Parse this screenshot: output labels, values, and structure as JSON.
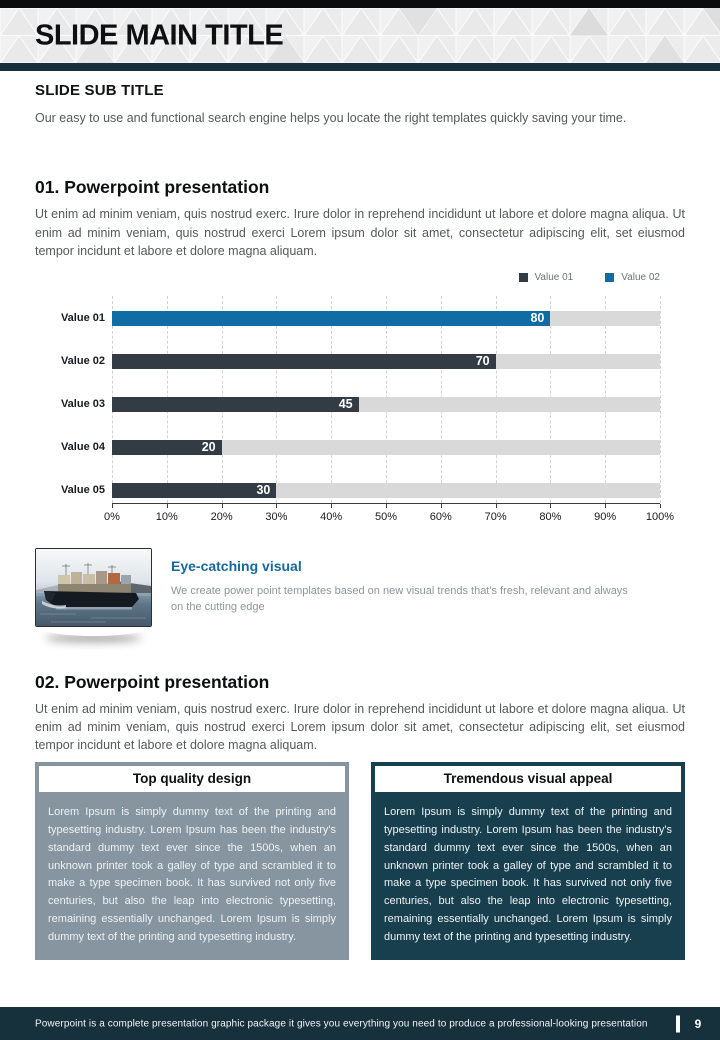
{
  "page": {
    "title": "SLIDE MAIN TITLE",
    "subtitle": "SLIDE SUB TITLE",
    "intro": "Our easy to use and functional search engine helps you locate the right templates quickly saving your time.",
    "footer_text": "Powerpoint is a complete presentation graphic package it gives you everything you need to produce a professional-looking presentation",
    "page_number": "9"
  },
  "sections": [
    {
      "heading": "01. Powerpoint presentation",
      "body": "Ut enim ad minim veniam, quis nostrud exerc. Irure dolor in reprehend incididunt ut labore et dolore magna aliqua. Ut enim ad minim veniam, quis nostrud exerci  Lorem ipsum dolor sit amet, consectetur adipiscing elit, set eiusmod tempor incidunt et labore et dolore magna aliquam."
    },
    {
      "heading": "02. Powerpoint presentation",
      "body": "Ut enim ad minim veniam, quis nostrud exerc. Irure dolor in reprehend incididunt ut labore et dolore magna aliqua. Ut enim ad minim veniam, quis nostrud exerci  Lorem ipsum dolor sit amet, consectetur adipiscing elit, set eiusmod tempor incidunt et labore et dolore magna aliquam."
    }
  ],
  "chart_data": {
    "type": "bar",
    "orientation": "horizontal",
    "categories": [
      "Value 01",
      "Value 02",
      "Value 03",
      "Value 04",
      "Value 05"
    ],
    "values": [
      80,
      70,
      45,
      20,
      30
    ],
    "series_colors": [
      "#0f6ca5",
      "#333b44",
      "#333b44",
      "#333b44",
      "#333b44"
    ],
    "track_color": "#d9d9d9",
    "xlim": [
      0,
      100
    ],
    "x_ticks": [
      "0%",
      "10%",
      "20%",
      "30%",
      "40%",
      "50%",
      "60%",
      "70%",
      "80%",
      "90%",
      "100%"
    ],
    "grid": "dashed-vertical",
    "legend_position": "top-right",
    "legend": [
      {
        "label": "Value 01",
        "color": "#333b44"
      },
      {
        "label": "Value 02",
        "color": "#0f6ca5"
      }
    ]
  },
  "feature": {
    "title": "Eye-catching visual",
    "text": "We create power point templates based on new visual trends that's fresh, relevant and always on the cutting edge"
  },
  "boxes": [
    {
      "title": "Top quality design",
      "bg": "#8695a0",
      "body": "Lorem Ipsum is simply dummy text of the printing and typesetting industry. Lorem Ipsum has been the industry's standard dummy text ever since the 1500s, when an unknown printer took a galley of type and scrambled it to make a type specimen book. It has survived not only five centuries, but also the leap into electronic typesetting, remaining essentially unchanged. Lorem Ipsum is simply dummy text of the printing and typesetting industry."
    },
    {
      "title": "Tremendous visual appeal",
      "bg": "#173f4e",
      "body": "Lorem Ipsum is simply dummy text of the printing and typesetting industry. Lorem Ipsum has been the industry's standard dummy text ever since the 1500s, when an unknown printer took a galley of type and scrambled it to make a type specimen book. It has survived not only five centuries, but also the leap into electronic typesetting, remaining essentially unchanged. Lorem Ipsum is simply dummy text of the printing and typesetting industry."
    }
  ],
  "colors": {
    "accent_teal": "#16313c",
    "accent_blue": "#0f6ca5",
    "dark_bar": "#333b44",
    "track_gray": "#d9d9d9",
    "body_gray": "#55595c"
  }
}
